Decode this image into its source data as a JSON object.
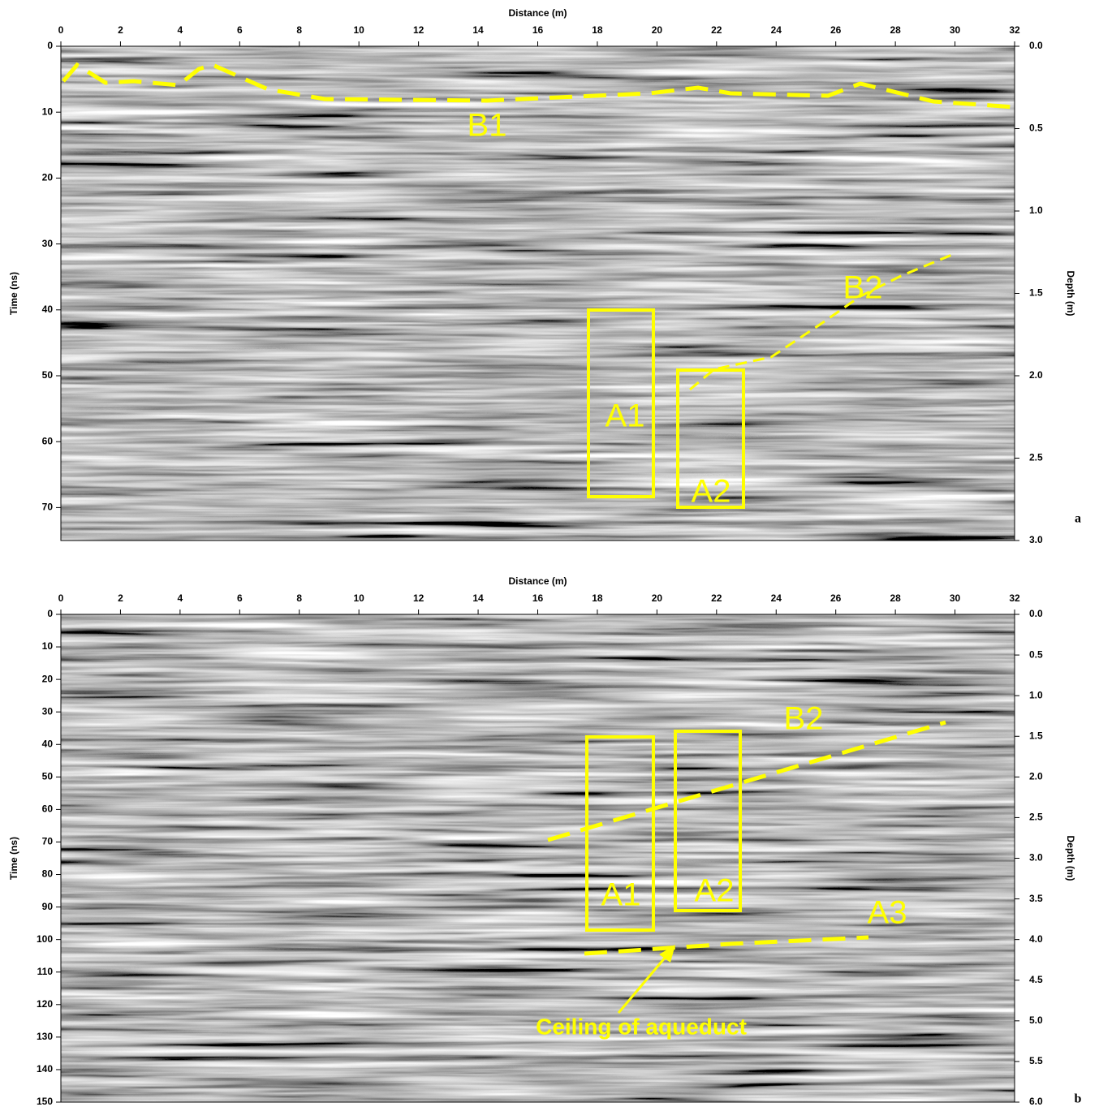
{
  "chart_data": [
    {
      "type": "radargram",
      "panel_label": "a",
      "x_label": "Distance (m)",
      "y_label": "Time (ns)",
      "y2_label": "Depth (m)",
      "xlim": [
        0,
        32
      ],
      "xticks": [
        0,
        2,
        4,
        6,
        8,
        10,
        12,
        14,
        16,
        18,
        20,
        22,
        24,
        26,
        28,
        30,
        32
      ],
      "ylim": [
        0,
        75
      ],
      "yticks": [
        0,
        10,
        20,
        30,
        40,
        50,
        60,
        70
      ],
      "y2lim": [
        0,
        3
      ],
      "y2ticks": [
        {
          "value": 0,
          "label": "0.0"
        },
        {
          "value": 0.5,
          "label": "0.5"
        },
        {
          "value": 1,
          "label": "1.0"
        },
        {
          "value": 1.5,
          "label": "1.5"
        },
        {
          "value": 2,
          "label": "2.0"
        },
        {
          "value": 2.5,
          "label": "2.5"
        },
        {
          "value": 3,
          "label": "3.0"
        }
      ],
      "annotations": [
        "B1",
        "A1",
        "A2",
        "B2"
      ]
    },
    {
      "type": "radargram",
      "panel_label": "b",
      "x_label": "Distance (m)",
      "y_label": "Time (ns)",
      "y2_label": "Depth (m)",
      "xlim": [
        0,
        32
      ],
      "xticks": [
        0,
        2,
        4,
        6,
        8,
        10,
        12,
        14,
        16,
        18,
        20,
        22,
        24,
        26,
        28,
        30,
        32
      ],
      "ylim": [
        0,
        150
      ],
      "yticks": [
        0,
        10,
        20,
        30,
        40,
        50,
        60,
        70,
        80,
        90,
        100,
        110,
        120,
        130,
        140,
        150
      ],
      "y2lim": [
        0,
        6
      ],
      "y2ticks": [
        {
          "value": 0,
          "label": "0.0"
        },
        {
          "value": 0.5,
          "label": "0.5"
        },
        {
          "value": 1,
          "label": "1.0"
        },
        {
          "value": 1.5,
          "label": "1.5"
        },
        {
          "value": 2,
          "label": "2.0"
        },
        {
          "value": 2.5,
          "label": "2.5"
        },
        {
          "value": 3,
          "label": "3.0"
        },
        {
          "value": 3.5,
          "label": "3.5"
        },
        {
          "value": 4,
          "label": "4.0"
        },
        {
          "value": 4.5,
          "label": "4.5"
        },
        {
          "value": 5,
          "label": "5.0"
        },
        {
          "value": 5.5,
          "label": "5.5"
        },
        {
          "value": 6,
          "label": "6.0"
        }
      ],
      "annotations": [
        "B2",
        "A1",
        "A2",
        "A3",
        "Ceiling of aqueduct"
      ]
    }
  ]
}
